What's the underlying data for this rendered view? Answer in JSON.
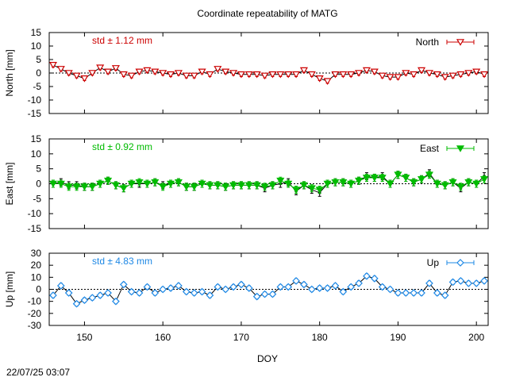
{
  "title": "Coordinate repeatability of MATG",
  "timestamp": "22/07/25 03:07",
  "chart_data": {
    "type": "line",
    "title": "Coordinate repeatability of MATG",
    "xlabel": "DOY",
    "xlim": [
      145.5,
      201.5
    ],
    "xticks": [
      150,
      160,
      170,
      180,
      190,
      200
    ],
    "x": [
      146,
      147,
      148,
      149,
      150,
      151,
      152,
      153,
      154,
      155,
      156,
      157,
      158,
      159,
      160,
      161,
      162,
      163,
      164,
      165,
      166,
      167,
      168,
      169,
      170,
      171,
      172,
      173,
      174,
      175,
      176,
      177,
      178,
      179,
      180,
      181,
      182,
      183,
      184,
      185,
      186,
      187,
      188,
      189,
      190,
      191,
      192,
      193,
      194,
      195,
      196,
      197,
      198,
      199,
      200,
      201
    ],
    "panels": [
      {
        "id": "north",
        "ylabel": "North [mm]",
        "ylim": [
          -15,
          15
        ],
        "yticks": [
          -15,
          -10,
          -5,
          0,
          5,
          10,
          15
        ],
        "std_label": "std ± 1.12 mm",
        "legend": "North",
        "color": "#cc0000",
        "marker": "triangle-down-open",
        "values": [
          3,
          1.5,
          0,
          -1,
          -2,
          0,
          2,
          0.5,
          1.8,
          -0.5,
          -1,
          0.5,
          1,
          0.5,
          0,
          -0.5,
          0,
          -1,
          -1,
          0.5,
          -0.5,
          1.5,
          0.5,
          0,
          -0.5,
          -0.5,
          -0.5,
          -1,
          -0.5,
          -0.5,
          -0.5,
          -0.5,
          1,
          -0.5,
          -2,
          -3,
          -0.5,
          -0.5,
          -0.5,
          0,
          1,
          0.5,
          -1,
          -1.5,
          -1.5,
          0,
          -0.5,
          1,
          0,
          -0.5,
          -1.5,
          -1,
          -0.5,
          0,
          0.5,
          -0.5
        ],
        "err": 0.8
      },
      {
        "id": "east",
        "ylabel": "East [mm]",
        "ylim": [
          -15,
          15
        ],
        "yticks": [
          -15,
          -10,
          -5,
          0,
          5,
          10,
          15
        ],
        "std_label": "std ± 0.92 mm",
        "legend": "East",
        "color": "#00bb00",
        "marker": "triangle-down-filled",
        "values": [
          0,
          0,
          -1,
          -1,
          -1,
          -1,
          0,
          1,
          -0.5,
          -1.5,
          0,
          0.5,
          0,
          0.5,
          -1,
          0,
          0.5,
          -1,
          -1,
          0,
          -0.5,
          -0.5,
          -1,
          -0.5,
          -0.5,
          -0.5,
          -0.5,
          -1,
          -0.5,
          1,
          0,
          -2,
          -0.5,
          -1.5,
          -2,
          0,
          0.5,
          0.5,
          0,
          1,
          2,
          2,
          2,
          0,
          3,
          2,
          0.5,
          1.5,
          3,
          0,
          -0.5,
          0.5,
          -1,
          0.5,
          0,
          1.5
        ],
        "values_black": [
          0,
          0.5,
          -0.5,
          -0.5,
          -1,
          -1,
          0,
          1,
          -0.5,
          -1.5,
          0,
          0,
          0,
          0.5,
          -0.5,
          0,
          0.5,
          -1,
          -1,
          0,
          -0.5,
          -0.5,
          -1,
          -0.5,
          -0.5,
          -0.5,
          -0.5,
          -1.5,
          -0.5,
          0,
          0.5,
          -2.5,
          -0.5,
          -2,
          -3,
          0,
          0.5,
          0.5,
          0,
          1,
          2.5,
          2,
          2.5,
          0,
          3,
          2,
          0.5,
          1.5,
          3.5,
          0,
          -0.5,
          0.5,
          -1.5,
          0.5,
          0,
          2.5
        ],
        "err": 1.2
      },
      {
        "id": "up",
        "ylabel": "Up [mm]",
        "ylim": [
          -30,
          30
        ],
        "yticks": [
          -30,
          -20,
          -10,
          0,
          10,
          20,
          30
        ],
        "std_label": "std ± 4.83 mm",
        "legend": "Up",
        "color": "#1e88e5",
        "marker": "diamond-open",
        "values": [
          -5,
          3,
          -3,
          -12,
          -9,
          -7,
          -5,
          -3,
          -10,
          4,
          -2,
          -3,
          2,
          -3,
          0,
          1,
          3,
          -2,
          -3,
          -2,
          -5,
          2,
          0,
          2,
          4,
          1,
          -6,
          -4,
          -4,
          2,
          2,
          7,
          4,
          0,
          1,
          1,
          3,
          -2,
          2,
          5,
          11,
          9,
          2,
          0,
          -3,
          -3,
          -3,
          -3,
          5,
          -3,
          -5,
          6,
          7,
          5,
          5,
          7
        ],
        "err": 2
      }
    ]
  }
}
